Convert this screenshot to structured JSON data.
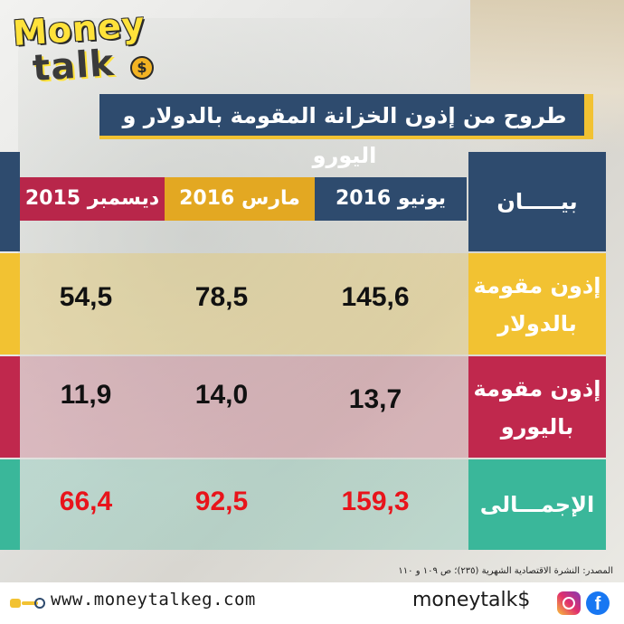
{
  "title": "طروح من إذون الخزانة المقومة بالدولار و اليورو",
  "logo": {
    "money": "Money",
    "talk": "talk",
    "coin": "$"
  },
  "colors": {
    "navy": "#2e4b6e",
    "yellow": "#f2c232",
    "crimson": "#c0284d",
    "teal": "#3ab79a",
    "total_red": "#e8141b"
  },
  "chart_data": {
    "type": "table",
    "title": "طروح من إذون الخزانة المقومة بالدولار و اليورو",
    "row_header": "بيـــــان",
    "columns": [
      "يونيو 2016",
      "مارس 2016",
      "ديسمبر 2015"
    ],
    "rows": [
      {
        "label_line1": "إذون مقومة",
        "label_line2": "بالدولار",
        "values": [
          "145,6",
          "78,5",
          "54,5"
        ]
      },
      {
        "label_line1": "إذون مقومة",
        "label_line2": "باليورو",
        "values": [
          "13,7",
          "14,0",
          "11,9"
        ]
      },
      {
        "label_line1": "الإجمـــالى",
        "label_line2": "",
        "values": [
          "159,3",
          "92,5",
          "66,4"
        ]
      }
    ]
  },
  "source": "المصدر: النشرة الاقتصادية الشهرية (٢٣٥)؛ ص ١٠٩ و ١١٠",
  "footer": {
    "website": "www.moneytalkeg.com",
    "brand": "moneytalk$",
    "icons": [
      "click-icon",
      "instagram-icon",
      "facebook-icon"
    ]
  }
}
